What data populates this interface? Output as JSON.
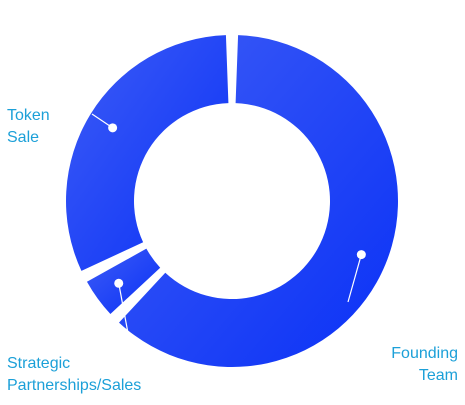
{
  "chart_data": {
    "type": "donut",
    "series": [
      {
        "label": "Founding Team",
        "value": 62.5
      },
      {
        "label": "Strategic Partnerships/Sales",
        "value": 5
      },
      {
        "label": "Token Sale",
        "value": 32.5
      }
    ],
    "colors": {
      "segment_start": "#3d5cf5",
      "segment_end": "#0a31f7",
      "label_text": "#1ca0d8",
      "leader": "#ffffff"
    }
  }
}
